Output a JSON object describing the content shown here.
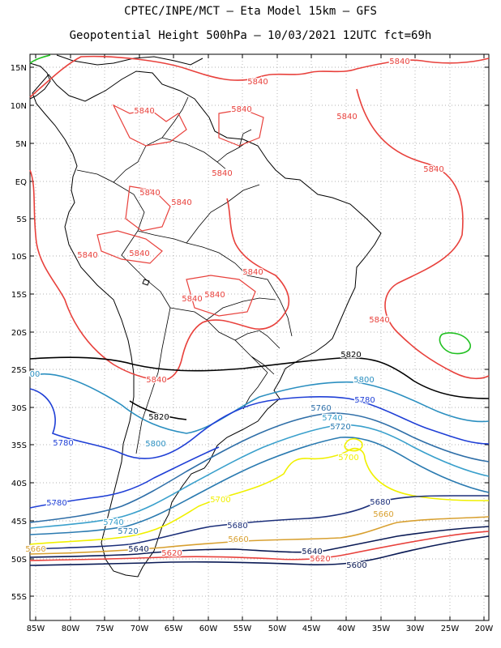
{
  "header": {
    "line1": "CPTEC/INPE/MCT –  Eta Model 15km – GFS",
    "line2": "Geopotential Height 500hPa – 10/03/2021 12UTC fct=69h"
  },
  "map": {
    "lat_labels": [
      "15N",
      "10N",
      "5N",
      "EQ",
      "5S",
      "10S",
      "15S",
      "20S",
      "25S",
      "30S",
      "35S",
      "40S",
      "45S",
      "50S",
      "55S"
    ],
    "lon_labels": [
      "85W",
      "80W",
      "75W",
      "70W",
      "65W",
      "60W",
      "55W",
      "50W",
      "45W",
      "40W",
      "35W",
      "30W",
      "25W",
      "20W"
    ],
    "colors": {
      "5840": "#e8413c",
      "5820": "#000000",
      "5800": "#2b8fc0",
      "5780": "#1f3fd6",
      "5760": "#2f6fa8",
      "5740": "#3aa0cc",
      "5720": "#2a7ab0",
      "5700": "#f0f000",
      "5680": "#1c2f7a",
      "5660": "#d8a030",
      "5640": "#0a1a55",
      "5620": "#e8413c",
      "5600": "#0a1a55",
      "5860": "#22c022"
    },
    "contour_labels": [
      {
        "text": "5840",
        "color_key": "5840"
      },
      {
        "text": "5840",
        "color_key": "5840"
      },
      {
        "text": "5840",
        "color_key": "5840"
      },
      {
        "text": "5840",
        "color_key": "5840"
      },
      {
        "text": "5840",
        "color_key": "5840"
      },
      {
        "text": "5840",
        "color_key": "5840"
      },
      {
        "text": "5840",
        "color_key": "5840"
      },
      {
        "text": "5840",
        "color_key": "5840"
      },
      {
        "text": "5840",
        "color_key": "5840"
      },
      {
        "text": "5840",
        "color_key": "5840"
      },
      {
        "text": "5840",
        "color_key": "5840"
      },
      {
        "text": "5840",
        "color_key": "5840"
      },
      {
        "text": "5840",
        "color_key": "5840"
      },
      {
        "text": "5840",
        "color_key": "5840"
      },
      {
        "text": "5840",
        "color_key": "5840"
      },
      {
        "text": "5840",
        "color_key": "5840"
      },
      {
        "text": "5820",
        "color_key": "5820"
      },
      {
        "text": "5820",
        "color_key": "5820"
      },
      {
        "text": "5800",
        "color_key": "5800"
      },
      {
        "text": "5800",
        "color_key": "5800"
      },
      {
        "text": "00",
        "color_key": "5800"
      },
      {
        "text": "5780",
        "color_key": "5780"
      },
      {
        "text": "5780",
        "color_key": "5780"
      },
      {
        "text": "5780",
        "color_key": "5780"
      },
      {
        "text": "5760",
        "color_key": "5760"
      },
      {
        "text": "5740",
        "color_key": "5740"
      },
      {
        "text": "5720",
        "color_key": "5720"
      },
      {
        "text": "5740",
        "color_key": "5740"
      },
      {
        "text": "5720",
        "color_key": "5720"
      },
      {
        "text": "5700",
        "color_key": "5700"
      },
      {
        "text": "5700",
        "color_key": "5700"
      },
      {
        "text": "5680",
        "color_key": "5680"
      },
      {
        "text": "5680",
        "color_key": "5680"
      },
      {
        "text": "5660",
        "color_key": "5660"
      },
      {
        "text": "5660",
        "color_key": "5660"
      },
      {
        "text": "5660",
        "color_key": "5660"
      },
      {
        "text": "5640",
        "color_key": "5640"
      },
      {
        "text": "5640",
        "color_key": "5640"
      },
      {
        "text": "5620",
        "color_key": "5620"
      },
      {
        "text": "5620",
        "color_key": "5620"
      },
      {
        "text": "5600",
        "color_key": "5600"
      }
    ]
  }
}
